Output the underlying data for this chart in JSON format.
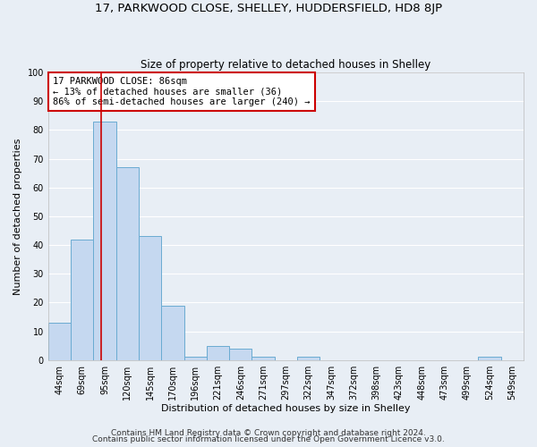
{
  "title": "17, PARKWOOD CLOSE, SHELLEY, HUDDERSFIELD, HD8 8JP",
  "subtitle": "Size of property relative to detached houses in Shelley",
  "xlabel": "Distribution of detached houses by size in Shelley",
  "ylabel": "Number of detached properties",
  "bar_labels": [
    "44sqm",
    "69sqm",
    "95sqm",
    "120sqm",
    "145sqm",
    "170sqm",
    "196sqm",
    "221sqm",
    "246sqm",
    "271sqm",
    "297sqm",
    "322sqm",
    "347sqm",
    "372sqm",
    "398sqm",
    "423sqm",
    "448sqm",
    "473sqm",
    "499sqm",
    "524sqm",
    "549sqm"
  ],
  "bar_values": [
    13,
    42,
    83,
    67,
    43,
    19,
    1,
    5,
    4,
    1,
    0,
    1,
    0,
    0,
    0,
    0,
    0,
    0,
    0,
    1,
    0
  ],
  "bar_color": "#c5d8f0",
  "bar_edge_color": "#6aabd2",
  "ylim": [
    0,
    100
  ],
  "yticks": [
    0,
    10,
    20,
    30,
    40,
    50,
    60,
    70,
    80,
    90,
    100
  ],
  "vline_x": 1.85,
  "vline_color": "#cc0000",
  "annotation_title": "17 PARKWOOD CLOSE: 86sqm",
  "annotation_line1": "← 13% of detached houses are smaller (36)",
  "annotation_line2": "86% of semi-detached houses are larger (240) →",
  "annotation_box_color": "#cc0000",
  "footer_line1": "Contains HM Land Registry data © Crown copyright and database right 2024.",
  "footer_line2": "Contains public sector information licensed under the Open Government Licence v3.0.",
  "background_color": "#e8eef5",
  "plot_bg_color": "#e8eef5",
  "grid_color": "#ffffff",
  "title_fontsize": 9.5,
  "subtitle_fontsize": 8.5,
  "axis_label_fontsize": 8,
  "tick_fontsize": 7,
  "footer_fontsize": 6.5,
  "annotation_fontsize": 7.5
}
